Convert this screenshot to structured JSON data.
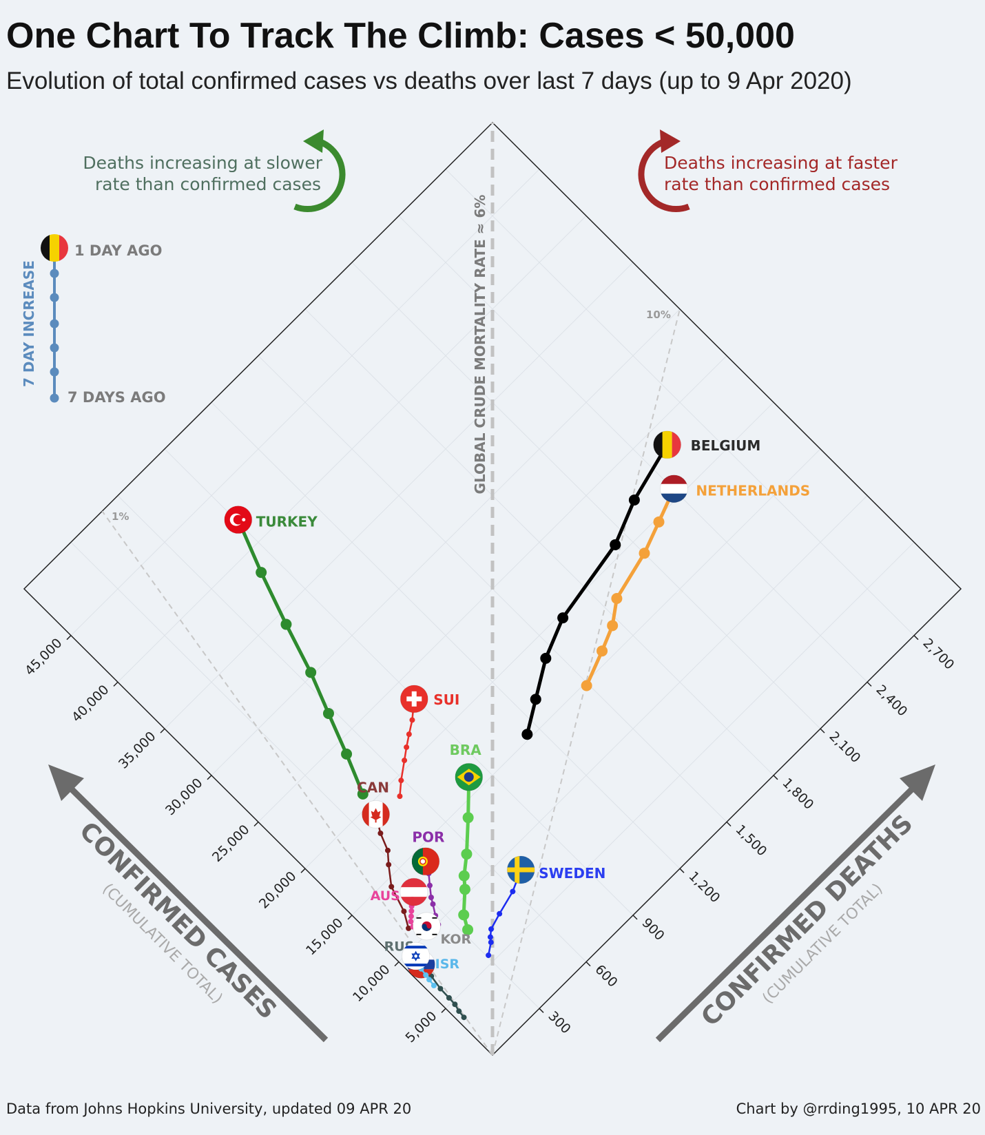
{
  "title": "One Chart To Track The Climb: Cases < 50,000",
  "subtitle": "Evolution of total confirmed cases vs deaths over last 7 days (up to 9 Apr 2020)",
  "footer": {
    "source": "Data from Johns Hopkins University, updated 09 APR 20",
    "credit": "Chart by @rrding1995, 10 APR 20"
  },
  "annotations": {
    "slower": [
      "Deaths increasing at slower",
      "rate than confirmed cases"
    ],
    "faster": [
      "Deaths increasing at faster",
      "rate than confirmed cases"
    ],
    "global_rate": "GLOBAL CRUDE MORTALITY RATE ≈ 6%",
    "rate_1": "1%",
    "rate_10": "10%"
  },
  "legend": {
    "top": "1 DAY AGO",
    "bottom": "7 DAYS AGO",
    "axis": "7 DAY INCREASE",
    "color": "#5b8bbd"
  },
  "chart_data": {
    "type": "line",
    "layout": "rotated-diamond",
    "x_axis": {
      "label": "CONFIRMED CASES",
      "sublabel": "(CUMULATIVE TOTAL)",
      "range": [
        0,
        50000
      ],
      "ticks": [
        5000,
        10000,
        15000,
        20000,
        25000,
        30000,
        35000,
        40000,
        45000
      ],
      "tick_labels": [
        "5,000",
        "10,000",
        "15,000",
        "20,000",
        "25,000",
        "30,000",
        "35,000",
        "40,000",
        "45,000"
      ]
    },
    "y_axis": {
      "label": "CONFIRMED DEATHS",
      "sublabel": "(CUMULATIVE TOTAL)",
      "range": [
        0,
        3000
      ],
      "ticks": [
        300,
        600,
        900,
        1200,
        1500,
        1800,
        2100,
        2400,
        2700
      ],
      "tick_labels": [
        "300",
        "600",
        "900",
        "1,200",
        "1,500",
        "1,800",
        "2,100",
        "2,400",
        "2,700"
      ]
    },
    "reference_lines": [
      {
        "label": "1%",
        "rate": 0.01
      },
      {
        "label": "10%",
        "rate": 0.1
      },
      {
        "label": "GLOBAL CRUDE MORTALITY RATE ≈ 6%",
        "rate": 0.06
      }
    ],
    "series": [
      {
        "name": "TURKEY",
        "code": "tr",
        "color": "#2e8b2e",
        "label_color": "#3a8a3a",
        "cases": [
          20921,
          23934,
          27069,
          30217,
          34109,
          38226,
          42282
        ],
        "deaths": [
          425,
          501,
          574,
          649,
          725,
          812,
          908
        ]
      },
      {
        "name": "BELGIUM",
        "code": "be",
        "color": "#000000",
        "label_color": "#2b2b2b",
        "cases": [
          15348,
          16770,
          18431,
          19691,
          20814,
          22194,
          23403
        ],
        "deaths": [
          1143,
          1283,
          1447,
          1632,
          2035,
          2240,
          2523
        ]
      },
      {
        "name": "NETHERLANDS",
        "code": "nl",
        "color": "#f4a13a",
        "label_color": "#f4a13a",
        "cases": [
          14788,
          15821,
          16627,
          17851,
          18803,
          19709,
          20682
        ],
        "deaths": [
          1490,
          1651,
          1766,
          1867,
          2101,
          2248,
          2403
        ]
      },
      {
        "name": "SUI",
        "code": "ch",
        "color": "#e8302a",
        "label_color": "#e8302a",
        "cases": [
          18827,
          19606,
          20505,
          21100,
          21657,
          22253,
          23280
        ],
        "deaths": [
          536,
          591,
          666,
          715,
          765,
          821,
          895
        ]
      },
      {
        "name": "BRA",
        "code": "br",
        "color": "#5ccd4f",
        "label_color": "#6ec95f",
        "cases": [
          8044,
          9056,
          10360,
          11130,
          12161,
          14034,
          16170
        ],
        "deaths": [
          324,
          359,
          445,
          486,
          564,
          686,
          819
        ]
      },
      {
        "name": "CAN",
        "code": "ca",
        "color": "#7a1c1c",
        "label_color": "#8a3a3a",
        "cases": [
          11283,
          12437,
          14426,
          15756,
          16563,
          17872,
          19141
        ],
        "deaths": [
          139,
          179,
          218,
          280,
          323,
          355,
          401
        ]
      },
      {
        "name": "POR",
        "code": "pt",
        "color": "#8b2fa8",
        "label_color": "#8b2fa8",
        "cases": [
          9886,
          10524,
          11278,
          11730,
          12442,
          13141,
          13956
        ],
        "deaths": [
          246,
          266,
          295,
          311,
          345,
          380,
          409
        ]
      },
      {
        "name": "AUS",
        "code": "at",
        "color": "#e8439b",
        "label_color": "#e8439b",
        "cases": [
          11129,
          11524,
          11781,
          12051,
          12297,
          12639,
          12942
        ],
        "deaths": [
          158,
          168,
          186,
          204,
          220,
          243,
          273
        ]
      },
      {
        "name": "KOR",
        "code": "kr",
        "color": "#444444",
        "label_color": "#8a8a8a",
        "cases": [
          10062,
          10156,
          10237,
          10284,
          10331,
          10384,
          10423
        ],
        "deaths": [
          169,
          177,
          183,
          186,
          192,
          200,
          204
        ]
      },
      {
        "name": "RUS",
        "code": "ru",
        "color": "#2f4f4f",
        "label_color": "#5e7070",
        "cases": [
          3548,
          4149,
          4731,
          5389,
          6343,
          7497,
          8672
        ],
        "deaths": [
          30,
          34,
          43,
          45,
          47,
          58,
          63
        ]
      },
      {
        "name": "ISR",
        "code": "il",
        "color": "#5cc0f0",
        "label_color": "#5ab7ea",
        "cases": [
          6857,
          7428,
          7851,
          8430,
          8904,
          9248,
          9404
        ],
        "deaths": [
          36,
          40,
          44,
          49,
          57,
          65,
          73
        ]
      },
      {
        "name": "SWEDEN",
        "code": "se",
        "color": "#1c2cf0",
        "label_color": "#2b3ef0",
        "cases": [
          5568,
          6131,
          6443,
          6830,
          7206,
          7693,
          8419
        ],
        "deaths": [
          308,
          358,
          373,
          401,
          477,
          591,
          687
        ]
      }
    ]
  }
}
